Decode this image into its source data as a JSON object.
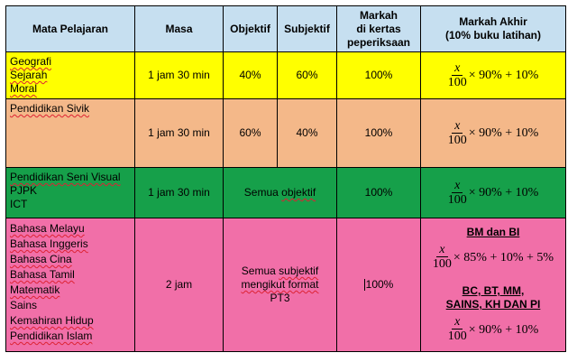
{
  "headers": {
    "subject": "Mata Pelajaran",
    "time": "Masa",
    "objective": "Objektif",
    "subjective": "Subjektif",
    "paper_marks": [
      "Markah",
      "di kertas",
      "peperiksaan"
    ],
    "final_marks": [
      "Markah Akhir",
      "(10% buku latihan)"
    ]
  },
  "rows": [
    {
      "subjects": [
        "Geografi",
        "Sejarah",
        "Moral"
      ],
      "time": "1 jam 30 min",
      "objective": "40%",
      "subjective": "60%",
      "paper": "100%",
      "formula": {
        "num": "x",
        "den": "100",
        "rest": "× 90% + 10%"
      }
    },
    {
      "subjects": [
        "Pendidikan Sivik"
      ],
      "time": "1 jam 30 min",
      "objective": "60%",
      "subjective": "40%",
      "paper": "100%",
      "formula": {
        "num": "x",
        "den": "100",
        "rest": "× 90% + 10%"
      }
    },
    {
      "subjects": [
        "Pendidikan Seni Visual",
        "PJPK",
        "ICT"
      ],
      "time": "1 jam 30 min",
      "merged_type": [
        "Semua ",
        "objektif"
      ],
      "paper": "100%",
      "formula": {
        "num": "x",
        "den": "100",
        "rest": "× 90% + 10%"
      }
    },
    {
      "subjects": [
        "Bahasa Melayu",
        "Bahasa Inggeris",
        "Bahasa Cina",
        "Bahasa Tamil",
        "Matematik",
        "Sains",
        "Kemahiran Hidup",
        "Pendidikan Islam"
      ],
      "time": "2 jam",
      "merged_type": [
        "Semua ",
        "subjektif",
        "mengikut format",
        "PT3"
      ],
      "paper": "100%",
      "formula_groups": [
        {
          "label": [
            "BM dan BI"
          ],
          "num": "x",
          "den": "100",
          "rest": "× 85% + 10% + 5%"
        },
        {
          "label": [
            "BC, BT, MM,",
            "SAINS, KH DAN PI"
          ],
          "num": "x",
          "den": "100",
          "rest": "× 90% + 10%"
        }
      ]
    }
  ],
  "colors": {
    "header": "#c6dff0",
    "row1": "#ffff00",
    "row2": "#f4b889",
    "row3": "#16a04a",
    "row4": "#f16fa8"
  }
}
